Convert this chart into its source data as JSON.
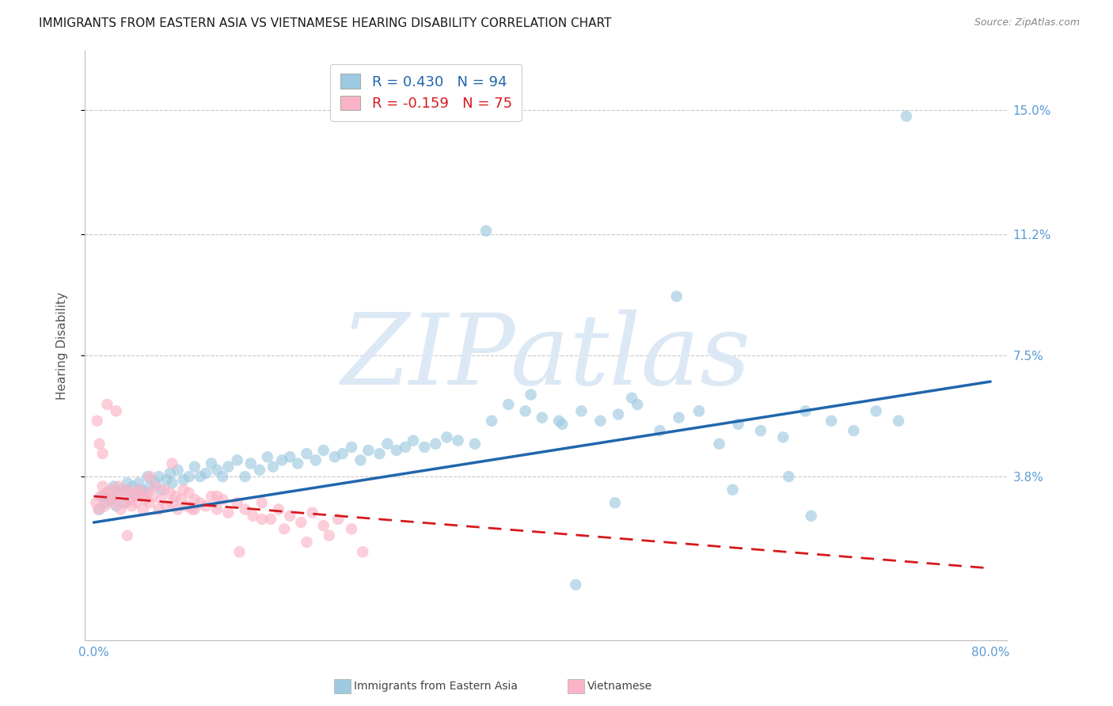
{
  "title": "IMMIGRANTS FROM EASTERN ASIA VS VIETNAMESE HEARING DISABILITY CORRELATION CHART",
  "source": "Source: ZipAtlas.com",
  "ylabel": "Hearing Disability",
  "legend_label1": "Immigrants from Eastern Asia",
  "legend_label2": "Vietnamese",
  "R1": 0.43,
  "N1": 94,
  "R2": -0.159,
  "N2": 75,
  "xlim": [
    -0.008,
    0.815
  ],
  "ylim": [
    -0.012,
    0.168
  ],
  "yticks": [
    0.038,
    0.075,
    0.112,
    0.15
  ],
  "ytick_labels": [
    "3.8%",
    "7.5%",
    "11.2%",
    "15.0%"
  ],
  "xticks": [
    0.0,
    0.1,
    0.2,
    0.3,
    0.4,
    0.5,
    0.6,
    0.7,
    0.8
  ],
  "color_blue": "#9ecae1",
  "color_blue_line": "#2166ac",
  "color_pink": "#fbb4c7",
  "color_pink_line": "#d7191c",
  "color_tick": "#5b9bd5",
  "background": "#ffffff",
  "watermark": "ZIPatlas",
  "watermark_color": "#dce9f5",
  "title_fontsize": 11,
  "label_fontsize": 11,
  "tick_fontsize": 11,
  "source_fontsize": 9,
  "legend_fontsize": 13,
  "blue_line_start_y": 0.024,
  "blue_line_end_y": 0.067,
  "pink_line_start_y": 0.032,
  "pink_line_end_y": 0.01,
  "blue_points_x": [
    0.005,
    0.008,
    0.01,
    0.012,
    0.015,
    0.018,
    0.02,
    0.022,
    0.025,
    0.028,
    0.03,
    0.032,
    0.035,
    0.038,
    0.04,
    0.042,
    0.045,
    0.048,
    0.05,
    0.055,
    0.058,
    0.06,
    0.065,
    0.068,
    0.07,
    0.075,
    0.08,
    0.085,
    0.09,
    0.095,
    0.1,
    0.105,
    0.11,
    0.115,
    0.12,
    0.128,
    0.135,
    0.14,
    0.148,
    0.155,
    0.16,
    0.168,
    0.175,
    0.182,
    0.19,
    0.198,
    0.205,
    0.215,
    0.222,
    0.23,
    0.238,
    0.245,
    0.255,
    0.262,
    0.27,
    0.278,
    0.285,
    0.295,
    0.305,
    0.315,
    0.325,
    0.34,
    0.355,
    0.37,
    0.385,
    0.4,
    0.418,
    0.435,
    0.452,
    0.468,
    0.485,
    0.505,
    0.522,
    0.54,
    0.558,
    0.575,
    0.595,
    0.615,
    0.635,
    0.658,
    0.678,
    0.698,
    0.718,
    0.35,
    0.52,
    0.725,
    0.62,
    0.48,
    0.39,
    0.43,
    0.465,
    0.57,
    0.64,
    0.415
  ],
  "blue_points_y": [
    0.028,
    0.032,
    0.03,
    0.033,
    0.031,
    0.035,
    0.029,
    0.033,
    0.034,
    0.03,
    0.036,
    0.033,
    0.035,
    0.032,
    0.036,
    0.034,
    0.033,
    0.038,
    0.035,
    0.036,
    0.038,
    0.034,
    0.037,
    0.039,
    0.036,
    0.04,
    0.037,
    0.038,
    0.041,
    0.038,
    0.039,
    0.042,
    0.04,
    0.038,
    0.041,
    0.043,
    0.038,
    0.042,
    0.04,
    0.044,
    0.041,
    0.043,
    0.044,
    0.042,
    0.045,
    0.043,
    0.046,
    0.044,
    0.045,
    0.047,
    0.043,
    0.046,
    0.045,
    0.048,
    0.046,
    0.047,
    0.049,
    0.047,
    0.048,
    0.05,
    0.049,
    0.048,
    0.055,
    0.06,
    0.058,
    0.056,
    0.054,
    0.058,
    0.055,
    0.057,
    0.06,
    0.052,
    0.056,
    0.058,
    0.048,
    0.054,
    0.052,
    0.05,
    0.058,
    0.055,
    0.052,
    0.058,
    0.055,
    0.113,
    0.093,
    0.148,
    0.038,
    0.062,
    0.063,
    0.005,
    0.03,
    0.034,
    0.026,
    0.055
  ],
  "pink_points_x": [
    0.002,
    0.004,
    0.006,
    0.008,
    0.01,
    0.012,
    0.014,
    0.016,
    0.018,
    0.02,
    0.022,
    0.024,
    0.026,
    0.028,
    0.03,
    0.032,
    0.034,
    0.036,
    0.038,
    0.04,
    0.042,
    0.044,
    0.046,
    0.048,
    0.05,
    0.052,
    0.055,
    0.058,
    0.06,
    0.063,
    0.065,
    0.068,
    0.07,
    0.073,
    0.075,
    0.078,
    0.08,
    0.083,
    0.085,
    0.088,
    0.09,
    0.095,
    0.1,
    0.105,
    0.11,
    0.115,
    0.12,
    0.128,
    0.135,
    0.142,
    0.15,
    0.158,
    0.165,
    0.175,
    0.185,
    0.195,
    0.205,
    0.218,
    0.23,
    0.003,
    0.005,
    0.008,
    0.012,
    0.02,
    0.03,
    0.05,
    0.07,
    0.09,
    0.11,
    0.13,
    0.15,
    0.17,
    0.19,
    0.21,
    0.24
  ],
  "pink_points_y": [
    0.03,
    0.028,
    0.032,
    0.035,
    0.029,
    0.033,
    0.031,
    0.034,
    0.03,
    0.032,
    0.035,
    0.028,
    0.033,
    0.03,
    0.034,
    0.031,
    0.029,
    0.033,
    0.03,
    0.034,
    0.032,
    0.028,
    0.031,
    0.033,
    0.03,
    0.032,
    0.035,
    0.028,
    0.031,
    0.034,
    0.029,
    0.033,
    0.03,
    0.032,
    0.028,
    0.031,
    0.034,
    0.029,
    0.033,
    0.028,
    0.031,
    0.03,
    0.029,
    0.032,
    0.028,
    0.031,
    0.027,
    0.03,
    0.028,
    0.026,
    0.03,
    0.025,
    0.028,
    0.026,
    0.024,
    0.027,
    0.023,
    0.025,
    0.022,
    0.055,
    0.048,
    0.045,
    0.06,
    0.058,
    0.02,
    0.038,
    0.042,
    0.028,
    0.032,
    0.015,
    0.025,
    0.022,
    0.018,
    0.02,
    0.015
  ]
}
